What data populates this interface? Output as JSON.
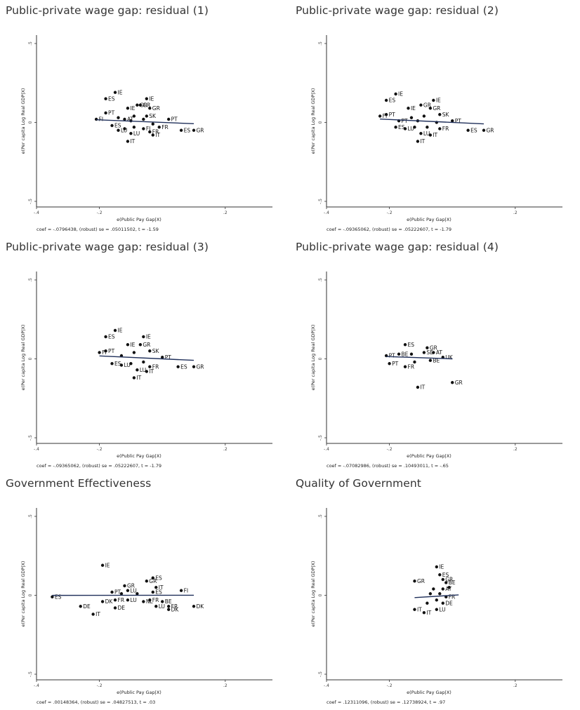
{
  "chart_data": [
    {
      "type": "scatter",
      "title": "Public-private wage gap: residual (1)",
      "xlabel": "e(Public Pay Gap|X)",
      "ylabel": "e(Per capita Log Real GDP|X)",
      "xlim": [
        -0.4,
        0.35
      ],
      "ylim": [
        -0.5,
        0.5
      ],
      "xticks": [
        -0.4,
        -0.2,
        0.2
      ],
      "xtick_labels": [
        "-.4",
        "-.2",
        ".2"
      ],
      "yticks": [
        -0.5,
        0,
        0.5
      ],
      "ytick_labels": [
        "-.5",
        "0",
        ".5"
      ],
      "grid": false,
      "fit": {
        "slope": -0.0796438,
        "intercept": 0.0
      },
      "note": "coef = -.0796438, (robust) se = .05011502, t = -1.59",
      "points": [
        {
          "x": -0.21,
          "y": 0.02,
          "label": "FI"
        },
        {
          "x": -0.18,
          "y": 0.15,
          "label": "ES"
        },
        {
          "x": -0.15,
          "y": 0.19,
          "label": "IE"
        },
        {
          "x": -0.18,
          "y": 0.06,
          "label": "PT"
        },
        {
          "x": -0.11,
          "y": 0.09,
          "label": "IE"
        },
        {
          "x": -0.07,
          "y": 0.11,
          "label": "GR"
        },
        {
          "x": -0.04,
          "y": 0.09,
          "label": "GR"
        },
        {
          "x": -0.05,
          "y": 0.15,
          "label": "IE"
        },
        {
          "x": -0.08,
          "y": 0.11,
          "label": "GR"
        },
        {
          "x": -0.05,
          "y": 0.04,
          "label": "SK"
        },
        {
          "x": -0.09,
          "y": 0.04,
          "label": ""
        },
        {
          "x": -0.12,
          "y": 0.02,
          "label": "AT"
        },
        {
          "x": -0.14,
          "y": 0.03,
          "label": ""
        },
        {
          "x": -0.1,
          "y": 0.01,
          "label": ""
        },
        {
          "x": -0.06,
          "y": 0.02,
          "label": ""
        },
        {
          "x": -0.03,
          "y": -0.01,
          "label": ""
        },
        {
          "x": -0.16,
          "y": -0.02,
          "label": "ES"
        },
        {
          "x": -0.14,
          "y": -0.05,
          "label": "LU"
        },
        {
          "x": -0.12,
          "y": -0.04,
          "label": ""
        },
        {
          "x": -0.09,
          "y": -0.03,
          "label": ""
        },
        {
          "x": -0.06,
          "y": -0.04,
          "label": "FI"
        },
        {
          "x": -0.1,
          "y": -0.07,
          "label": "LU"
        },
        {
          "x": -0.04,
          "y": -0.06,
          "label": "FR"
        },
        {
          "x": -0.01,
          "y": -0.03,
          "label": "FR"
        },
        {
          "x": -0.03,
          "y": -0.08,
          "label": "IT"
        },
        {
          "x": -0.11,
          "y": -0.12,
          "label": "IT"
        },
        {
          "x": 0.02,
          "y": 0.02,
          "label": "PT"
        },
        {
          "x": 0.06,
          "y": -0.05,
          "label": "ES"
        },
        {
          "x": 0.1,
          "y": -0.05,
          "label": "GR"
        }
      ]
    },
    {
      "type": "scatter",
      "title": "Public-private wage gap: residual (2)",
      "xlabel": "e(Public Pay Gap|X)",
      "ylabel": "e(Per capita Log Real GDP|X)",
      "xlim": [
        -0.4,
        0.35
      ],
      "ylim": [
        -0.5,
        0.5
      ],
      "xticks": [
        -0.4,
        -0.2,
        0.2
      ],
      "xtick_labels": [
        "-.4",
        "-.2",
        ".2"
      ],
      "yticks": [
        -0.5,
        0,
        0.5
      ],
      "ytick_labels": [
        "-.5",
        "0",
        ".5"
      ],
      "grid": false,
      "fit": {
        "slope": -0.09365062,
        "intercept": 0.0
      },
      "note": "coef = -.09365062, (robust) se = .05222607, t = -1.79",
      "points": [
        {
          "x": -0.23,
          "y": 0.04,
          "label": "FI"
        },
        {
          "x": -0.21,
          "y": 0.14,
          "label": "ES"
        },
        {
          "x": -0.18,
          "y": 0.18,
          "label": "IE"
        },
        {
          "x": -0.21,
          "y": 0.05,
          "label": "PT"
        },
        {
          "x": -0.14,
          "y": 0.09,
          "label": "IE"
        },
        {
          "x": -0.1,
          "y": 0.11,
          "label": "GR"
        },
        {
          "x": -0.07,
          "y": 0.09,
          "label": "GR"
        },
        {
          "x": -0.06,
          "y": 0.14,
          "label": "IE"
        },
        {
          "x": -0.04,
          "y": 0.05,
          "label": "SK"
        },
        {
          "x": -0.09,
          "y": 0.04,
          "label": ""
        },
        {
          "x": -0.13,
          "y": 0.03,
          "label": ""
        },
        {
          "x": -0.17,
          "y": 0.01,
          "label": "PT"
        },
        {
          "x": -0.11,
          "y": 0.01,
          "label": ""
        },
        {
          "x": -0.05,
          "y": 0.0,
          "label": ""
        },
        {
          "x": -0.18,
          "y": -0.03,
          "label": "ES"
        },
        {
          "x": -0.15,
          "y": -0.04,
          "label": "LU"
        },
        {
          "x": -0.12,
          "y": -0.03,
          "label": ""
        },
        {
          "x": -0.08,
          "y": -0.03,
          "label": ""
        },
        {
          "x": -0.04,
          "y": -0.04,
          "label": "FR"
        },
        {
          "x": -0.1,
          "y": -0.07,
          "label": "LU"
        },
        {
          "x": -0.07,
          "y": -0.08,
          "label": "IT"
        },
        {
          "x": -0.11,
          "y": -0.12,
          "label": "IT"
        },
        {
          "x": 0.0,
          "y": 0.01,
          "label": "PT"
        },
        {
          "x": 0.05,
          "y": -0.05,
          "label": "ES"
        },
        {
          "x": 0.1,
          "y": -0.05,
          "label": "GR"
        }
      ]
    },
    {
      "type": "scatter",
      "title": "Public-private wage gap: residual (3)",
      "xlabel": "e(Public Pay Gap|X)",
      "ylabel": "e(Per capita Log Real GDP|X)",
      "xlim": [
        -0.4,
        0.35
      ],
      "ylim": [
        -0.5,
        0.5
      ],
      "xticks": [
        -0.4,
        -0.2,
        0.2
      ],
      "xtick_labels": [
        "-.4",
        "-.2",
        ".2"
      ],
      "yticks": [
        -0.5,
        0,
        0.5
      ],
      "ytick_labels": [
        "-.5",
        "0",
        ".5"
      ],
      "grid": false,
      "fit": {
        "slope": -0.09365062,
        "intercept": 0.0
      },
      "note": "coef = -.09365062, (robust) se = .05222607, t = -1.79",
      "points": [
        {
          "x": -0.2,
          "y": 0.04,
          "label": "FI"
        },
        {
          "x": -0.18,
          "y": 0.14,
          "label": "ES"
        },
        {
          "x": -0.15,
          "y": 0.18,
          "label": "IE"
        },
        {
          "x": -0.18,
          "y": 0.05,
          "label": "PT"
        },
        {
          "x": -0.11,
          "y": 0.09,
          "label": "IE"
        },
        {
          "x": -0.07,
          "y": 0.09,
          "label": "GR"
        },
        {
          "x": -0.06,
          "y": 0.14,
          "label": "IE"
        },
        {
          "x": -0.04,
          "y": 0.05,
          "label": "SK"
        },
        {
          "x": -0.09,
          "y": 0.04,
          "label": ""
        },
        {
          "x": -0.13,
          "y": 0.02,
          "label": ""
        },
        {
          "x": -0.16,
          "y": -0.03,
          "label": "ES"
        },
        {
          "x": -0.13,
          "y": -0.04,
          "label": "LU"
        },
        {
          "x": -0.1,
          "y": -0.03,
          "label": ""
        },
        {
          "x": -0.06,
          "y": -0.02,
          "label": ""
        },
        {
          "x": -0.04,
          "y": -0.05,
          "label": "FR"
        },
        {
          "x": -0.08,
          "y": -0.07,
          "label": "LU"
        },
        {
          "x": -0.05,
          "y": -0.08,
          "label": "IT"
        },
        {
          "x": -0.09,
          "y": -0.12,
          "label": "IT"
        },
        {
          "x": 0.0,
          "y": 0.01,
          "label": "PT"
        },
        {
          "x": 0.05,
          "y": -0.05,
          "label": "ES"
        },
        {
          "x": 0.1,
          "y": -0.05,
          "label": "GR"
        }
      ]
    },
    {
      "type": "scatter",
      "title": "Public-private wage gap: residual (4)",
      "xlabel": "e(Public Pay Gap|X)",
      "ylabel": "e(Per capita Log Real GDP|X)",
      "xlim": [
        -0.4,
        0.35
      ],
      "ylim": [
        -0.5,
        0.5
      ],
      "xticks": [
        -0.4,
        -0.2,
        0.2
      ],
      "xtick_labels": [
        "-.4",
        "-.2",
        ".2"
      ],
      "yticks": [
        -0.5,
        0,
        0.5
      ],
      "ytick_labels": [
        "-.5",
        "0",
        ".5"
      ],
      "grid": false,
      "fit": {
        "slope": -0.07082986,
        "intercept": 0.0
      },
      "note": "coef = -.07082986, (robust) se = .10493011, t = -.65",
      "points": [
        {
          "x": -0.21,
          "y": 0.02,
          "label": "PT"
        },
        {
          "x": -0.15,
          "y": 0.09,
          "label": "ES"
        },
        {
          "x": -0.2,
          "y": -0.03,
          "label": "PT"
        },
        {
          "x": -0.17,
          "y": 0.03,
          "label": "BE"
        },
        {
          "x": -0.13,
          "y": 0.03,
          "label": ""
        },
        {
          "x": -0.08,
          "y": 0.07,
          "label": "GR"
        },
        {
          "x": -0.09,
          "y": 0.04,
          "label": "SE"
        },
        {
          "x": -0.06,
          "y": 0.04,
          "label": "AT"
        },
        {
          "x": -0.03,
          "y": 0.01,
          "label": "UK"
        },
        {
          "x": -0.12,
          "y": -0.02,
          "label": ""
        },
        {
          "x": -0.15,
          "y": -0.05,
          "label": "FR"
        },
        {
          "x": -0.07,
          "y": -0.01,
          "label": "BE"
        },
        {
          "x": -0.11,
          "y": -0.18,
          "label": "IT"
        },
        {
          "x": 0.0,
          "y": -0.15,
          "label": "GR"
        }
      ]
    },
    {
      "type": "scatter",
      "title": "Government Effectiveness",
      "xlabel": "e(Public Pay Gap|X)",
      "ylabel": "e(Per capita Log Real GDP|X)",
      "xlim": [
        -0.4,
        0.35
      ],
      "ylim": [
        -0.5,
        0.5
      ],
      "xticks": [
        -0.4,
        -0.2,
        0.2
      ],
      "xtick_labels": [
        "-.4",
        "-.2",
        ".2"
      ],
      "yticks": [
        -0.5,
        0,
        0.5
      ],
      "ytick_labels": [
        "-.5",
        "0",
        ".5"
      ],
      "grid": false,
      "fit": {
        "slope": 0.00148364,
        "intercept": 0.0
      },
      "note": "coef = .00148364, (robust) se = .04827513, t = .03",
      "points": [
        {
          "x": -0.35,
          "y": -0.01,
          "label": "ES"
        },
        {
          "x": -0.19,
          "y": 0.19,
          "label": "IE"
        },
        {
          "x": -0.12,
          "y": 0.06,
          "label": "GR"
        },
        {
          "x": -0.11,
          "y": 0.03,
          "label": "LU"
        },
        {
          "x": -0.16,
          "y": 0.02,
          "label": "PT"
        },
        {
          "x": -0.13,
          "y": 0.01,
          "label": ""
        },
        {
          "x": -0.08,
          "y": 0.01,
          "label": ""
        },
        {
          "x": -0.19,
          "y": -0.04,
          "label": "DK"
        },
        {
          "x": -0.15,
          "y": -0.03,
          "label": "FR"
        },
        {
          "x": -0.11,
          "y": -0.03,
          "label": "LU"
        },
        {
          "x": -0.06,
          "y": -0.04,
          "label": "NL"
        },
        {
          "x": -0.26,
          "y": -0.07,
          "label": "DE"
        },
        {
          "x": -0.22,
          "y": -0.12,
          "label": "IT"
        },
        {
          "x": -0.15,
          "y": -0.08,
          "label": "DE"
        },
        {
          "x": -0.05,
          "y": 0.09,
          "label": "GR"
        },
        {
          "x": -0.03,
          "y": 0.11,
          "label": "ES"
        },
        {
          "x": -0.02,
          "y": 0.05,
          "label": "IT"
        },
        {
          "x": -0.03,
          "y": 0.02,
          "label": "ES"
        },
        {
          "x": -0.04,
          "y": -0.03,
          "label": "FR"
        },
        {
          "x": -0.02,
          "y": -0.07,
          "label": "LU"
        },
        {
          "x": 0.0,
          "y": -0.04,
          "label": "BE"
        },
        {
          "x": 0.02,
          "y": -0.07,
          "label": "FR"
        },
        {
          "x": 0.02,
          "y": -0.09,
          "label": "DK"
        },
        {
          "x": 0.06,
          "y": 0.03,
          "label": "FI"
        },
        {
          "x": 0.1,
          "y": -0.07,
          "label": "DK"
        }
      ]
    },
    {
      "type": "scatter",
      "title": "Quality of Government",
      "xlabel": "e(Public Pay Gap|X)",
      "ylabel": "e(Per capita Log Real GDP|X)",
      "xlim": [
        -0.4,
        0.35
      ],
      "ylim": [
        -0.5,
        0.5
      ],
      "xticks": [
        -0.4,
        -0.2,
        0.2
      ],
      "xtick_labels": [
        "-.4",
        "-.2",
        ".2"
      ],
      "yticks": [
        -0.5,
        0,
        0.5
      ],
      "ytick_labels": [
        "-.5",
        "0",
        ".5"
      ],
      "grid": false,
      "fit": {
        "slope": 0.12311096,
        "intercept": 0.0,
        "xrange": [
          -0.12,
          0.02
        ]
      },
      "note": "coef = .12311096, (robust) se = .12738924, t = .97",
      "points": [
        {
          "x": -0.12,
          "y": 0.09,
          "label": "GR"
        },
        {
          "x": -0.05,
          "y": 0.18,
          "label": "IE"
        },
        {
          "x": -0.04,
          "y": 0.13,
          "label": "ES"
        },
        {
          "x": -0.03,
          "y": 0.1,
          "label": "GR"
        },
        {
          "x": -0.02,
          "y": 0.08,
          "label": "BE"
        },
        {
          "x": -0.06,
          "y": 0.04,
          "label": ""
        },
        {
          "x": -0.03,
          "y": 0.04,
          "label": "AT"
        },
        {
          "x": -0.01,
          "y": 0.05,
          "label": ""
        },
        {
          "x": -0.07,
          "y": 0.01,
          "label": ""
        },
        {
          "x": -0.04,
          "y": 0.01,
          "label": ""
        },
        {
          "x": -0.02,
          "y": -0.01,
          "label": "FR"
        },
        {
          "x": -0.05,
          "y": -0.03,
          "label": ""
        },
        {
          "x": -0.03,
          "y": -0.05,
          "label": "DE"
        },
        {
          "x": -0.08,
          "y": -0.05,
          "label": ""
        },
        {
          "x": -0.12,
          "y": -0.09,
          "label": "IT"
        },
        {
          "x": -0.09,
          "y": -0.11,
          "label": "IT"
        },
        {
          "x": -0.05,
          "y": -0.09,
          "label": "LU"
        }
      ]
    }
  ]
}
